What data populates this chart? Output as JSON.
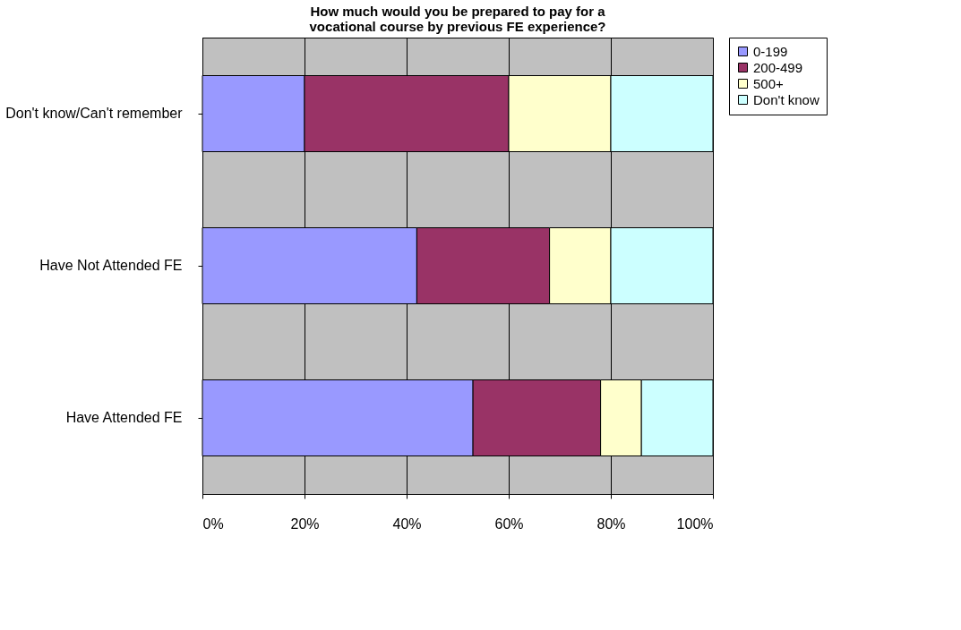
{
  "chart_data": {
    "type": "bar",
    "orientation": "horizontal",
    "stacked": true,
    "title": "How much would you be prepared to pay for a vocational course by previous FE experience?",
    "categories": [
      "Don't know/Can't remember",
      "Have Not Attended FE",
      "Have Attended FE"
    ],
    "series": [
      {
        "name": "0-199",
        "color": "#9999ff",
        "values": [
          20,
          42,
          53
        ]
      },
      {
        "name": "200-499",
        "color": "#993366",
        "values": [
          40,
          26,
          25
        ]
      },
      {
        "name": "500+",
        "color": "#ffffcc",
        "values": [
          20,
          12,
          8
        ]
      },
      {
        "name": "Don't know",
        "color": "#ccffff",
        "values": [
          20,
          20,
          14
        ]
      }
    ],
    "xlim": [
      0,
      100
    ],
    "xticks": [
      {
        "value": 0,
        "label": "0%"
      },
      {
        "value": 20,
        "label": "20%"
      },
      {
        "value": 40,
        "label": "40%"
      },
      {
        "value": 60,
        "label": "60%"
      },
      {
        "value": 80,
        "label": "80%"
      },
      {
        "value": 100,
        "label": "100%"
      }
    ],
    "grid": "x",
    "legend": "right"
  }
}
